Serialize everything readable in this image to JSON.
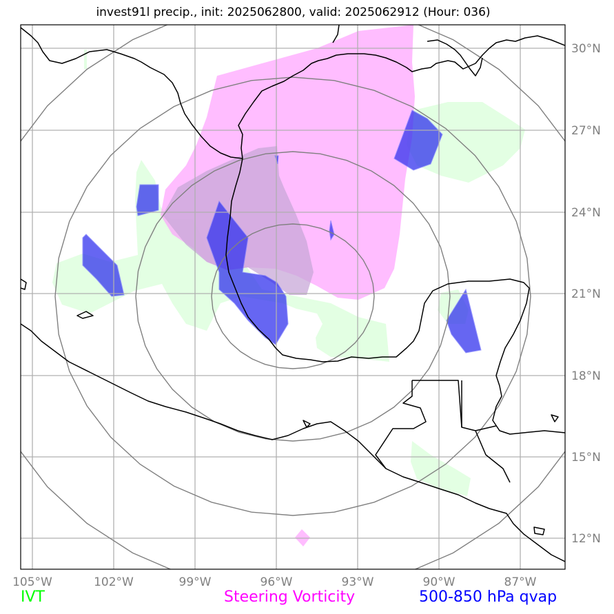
{
  "title": "invest91l precip., init: 2025062800, valid: 2025062912 (Hour: 036)",
  "lon_ticks": [
    "105°W",
    "102°W",
    "99°W",
    "96°W",
    "93°W",
    "90°W",
    "87°W"
  ],
  "lat_ticks": [
    "30°N",
    "27°N",
    "24°N",
    "21°N",
    "18°N",
    "15°N",
    "12°N"
  ],
  "legend": {
    "ivt": {
      "label": "IVT",
      "color": "#00ff00"
    },
    "vorticity": {
      "label": "Steering Vorticity",
      "color": "#ff00ff"
    },
    "qvap": {
      "label": "500-850 hPa qvap",
      "color": "#0000ff"
    }
  },
  "colors": {
    "ivt_fill": "#ccffcc",
    "vorticity_fill": "#ff99ff",
    "qvap_fill": "#3333ee",
    "range_rings": "#808080",
    "gridlines": "#b0b0b0",
    "coastline": "#000000"
  }
}
